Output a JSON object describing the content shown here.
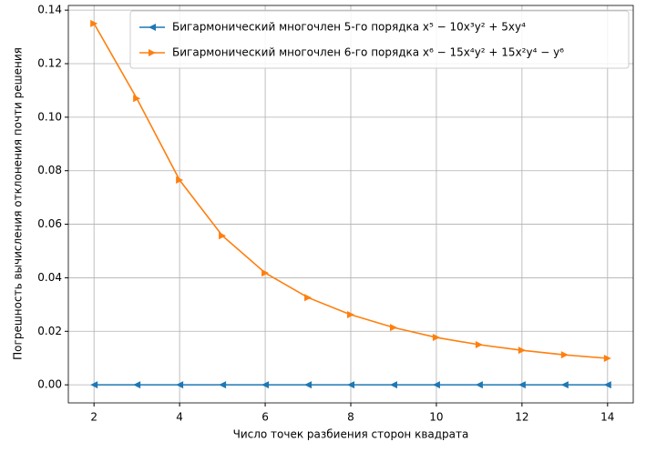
{
  "chart_data": {
    "type": "line",
    "xlabel": "Число точек разбиения сторон квадрата",
    "ylabel": "Погрешность вычисления отклонения почти решения",
    "x": [
      2,
      3,
      4,
      5,
      6,
      7,
      8,
      9,
      10,
      11,
      12,
      13,
      14
    ],
    "series": [
      {
        "name": "Бигармонический многочлен  5-го порядка x⁵ − 10x³y² + 5xy⁴",
        "color": "#1f77b4",
        "marker": "triangle-left",
        "values": [
          0,
          0,
          0,
          0,
          0,
          0,
          0,
          0,
          0,
          0,
          0,
          0,
          0
        ]
      },
      {
        "name": "Бигармонический многочлен 6-го порядка x⁶ − 15x⁴y² + 15x²y⁴ − y⁶",
        "color": "#ff7f0e",
        "marker": "triangle-right",
        "values": [
          0.135,
          0.107,
          0.0765,
          0.0557,
          0.0418,
          0.0326,
          0.0262,
          0.0214,
          0.0177,
          0.015,
          0.0129,
          0.0112,
          0.0099
        ]
      }
    ],
    "xlim": [
      1.4,
      14.6
    ],
    "xticks": [
      2,
      4,
      6,
      8,
      10,
      12,
      14
    ],
    "ylim": [
      -0.00675,
      0.14175
    ],
    "yticks": [
      {
        "value": 0,
        "label": "0.00"
      },
      {
        "value": 0.02,
        "label": "0.02"
      },
      {
        "value": 0.04,
        "label": "0.04"
      },
      {
        "value": 0.06,
        "label": "0.06"
      },
      {
        "value": 0.08,
        "label": "0.08"
      },
      {
        "value": 0.1,
        "label": "0.10"
      },
      {
        "value": 0.12,
        "label": "0.12"
      },
      {
        "value": 0.14,
        "label": "0.14"
      }
    ],
    "grid": true,
    "legend": "upper right"
  }
}
